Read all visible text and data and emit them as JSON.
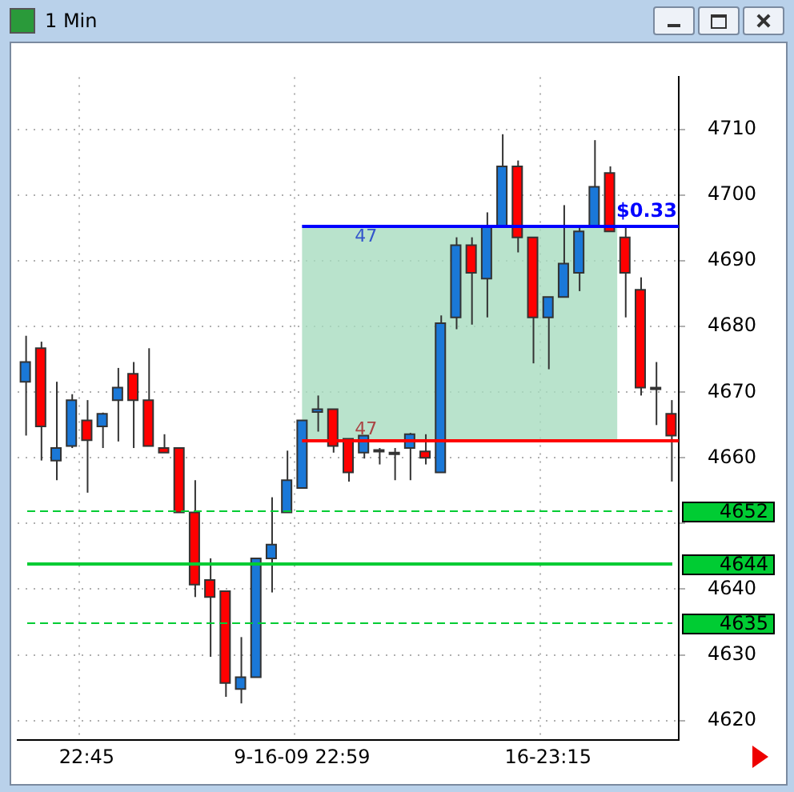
{
  "chart_data": {
    "type": "candlestick",
    "title": "1 Min",
    "categories": [
      null,
      null,
      null,
      null,
      "22:45",
      null,
      null,
      null,
      null,
      null,
      null,
      null,
      null,
      null,
      null,
      null,
      null,
      null,
      "9-16-09 22:59",
      null,
      null,
      null,
      null,
      null,
      null,
      null,
      null,
      null,
      null,
      null,
      null,
      null,
      null,
      null,
      "16-23:15",
      null,
      null,
      null,
      null,
      null,
      null,
      null,
      null
    ],
    "ohlc": [
      [
        4671.6,
        4678.6,
        4663.4,
        4674.6
      ],
      [
        4676.7,
        4677.7,
        4659.6,
        4664.8
      ],
      [
        4659.6,
        4671.6,
        4656.6,
        4661.5
      ],
      [
        4661.8,
        4669.7,
        4661.5,
        4668.8
      ],
      [
        4665.7,
        4668.8,
        4654.7,
        4662.7
      ],
      [
        4664.8,
        4666.9,
        4661.5,
        4666.7
      ],
      [
        4668.8,
        4673.7,
        4662.5,
        4670.7
      ],
      [
        4672.8,
        4674.6,
        4661.5,
        4668.8
      ],
      [
        4668.8,
        4676.7,
        4661.8,
        4661.8
      ],
      [
        4661.5,
        4663.6,
        4660.8,
        4660.8
      ],
      [
        4661.5,
        4661.5,
        4651.7,
        4651.7
      ],
      [
        4651.7,
        4656.6,
        4638.8,
        4640.7
      ],
      [
        4641.4,
        4644.7,
        4629.7,
        4638.8
      ],
      [
        4639.7,
        4639.7,
        4623.6,
        4625.7
      ],
      [
        4624.8,
        4632.7,
        4622.6,
        4626.6
      ],
      [
        4626.6,
        4644.7,
        4626.6,
        4644.7
      ],
      [
        4644.7,
        4654.0,
        4639.5,
        4646.8
      ],
      [
        4651.7,
        4661.1,
        4651.7,
        4656.6
      ],
      [
        4655.4,
        4665.7,
        4655.4,
        4665.7
      ],
      [
        4667.0,
        4669.5,
        4664.0,
        4667.4
      ],
      [
        4667.4,
        4667.4,
        4660.8,
        4661.8
      ],
      [
        4662.9,
        4662.9,
        4656.4,
        4657.8
      ],
      [
        4660.8,
        4663.4,
        4659.9,
        4663.4
      ],
      [
        4661.0,
        4661.5,
        4659.0,
        4661.2
      ],
      [
        4660.8,
        4661.5,
        4656.6,
        4660.6
      ],
      [
        4661.5,
        4663.8,
        4656.6,
        4663.6
      ],
      [
        4661.0,
        4663.6,
        4659.0,
        4660.0
      ],
      [
        4657.8,
        4681.7,
        4657.8,
        4680.5
      ],
      [
        4681.4,
        4693.6,
        4679.6,
        4692.4
      ],
      [
        4692.4,
        4693.6,
        4680.3,
        4688.2
      ],
      [
        4687.3,
        4697.4,
        4681.4,
        4695.2
      ],
      [
        4695.2,
        4709.3,
        4695.2,
        4704.4
      ],
      [
        4704.4,
        4705.3,
        4691.3,
        4693.6
      ],
      [
        4693.6,
        4693.6,
        4674.4,
        4681.4
      ],
      [
        4681.4,
        4684.5,
        4673.5,
        4684.5
      ],
      [
        4684.5,
        4698.5,
        4684.5,
        4689.6
      ],
      [
        4688.2,
        4695.2,
        4685.4,
        4694.5
      ],
      [
        4695.2,
        4708.4,
        4695.2,
        4701.3
      ],
      [
        4703.4,
        4704.4,
        4694.5,
        4694.5
      ],
      [
        4693.6,
        4695.2,
        4681.4,
        4688.2
      ],
      [
        4685.6,
        4687.5,
        4669.5,
        4670.7
      ],
      [
        4670.5,
        4674.6,
        4665.0,
        4670.7
      ],
      [
        4666.7,
        4668.8,
        4656.4,
        4663.4
      ]
    ],
    "ylim": [
      4617,
      4718
    ],
    "yticks": [
      4620,
      4630,
      4640,
      {
        "value": 4650,
        "label": null
      },
      4660,
      4670,
      4680,
      4690,
      4700,
      4710
    ],
    "grid": true,
    "ref_lines": [
      {
        "axis": "y",
        "value": 4695.5,
        "label": null,
        "color": "#0000ff",
        "line_style": "solid"
      },
      {
        "axis": "y",
        "value": 4662.7,
        "label": null,
        "color": "#ff0000",
        "line_style": "solid"
      },
      {
        "axis": "y",
        "value": 4652,
        "label": "4652",
        "color": "#00cc33",
        "line_style": "dashed"
      },
      {
        "axis": "y",
        "value": 4644,
        "label": "4644",
        "color": "#00cc33",
        "line_style": "solid"
      },
      {
        "axis": "y",
        "value": 4635,
        "label": "4635",
        "color": "#00cc33",
        "line_style": "dashed"
      }
    ],
    "bands": [
      {
        "axis": "y",
        "from": 4662.7,
        "to": 4695.5,
        "color": "#a8dcbf"
      }
    ],
    "annotations": [
      "47",
      "47",
      "$0.33"
    ]
  }
}
